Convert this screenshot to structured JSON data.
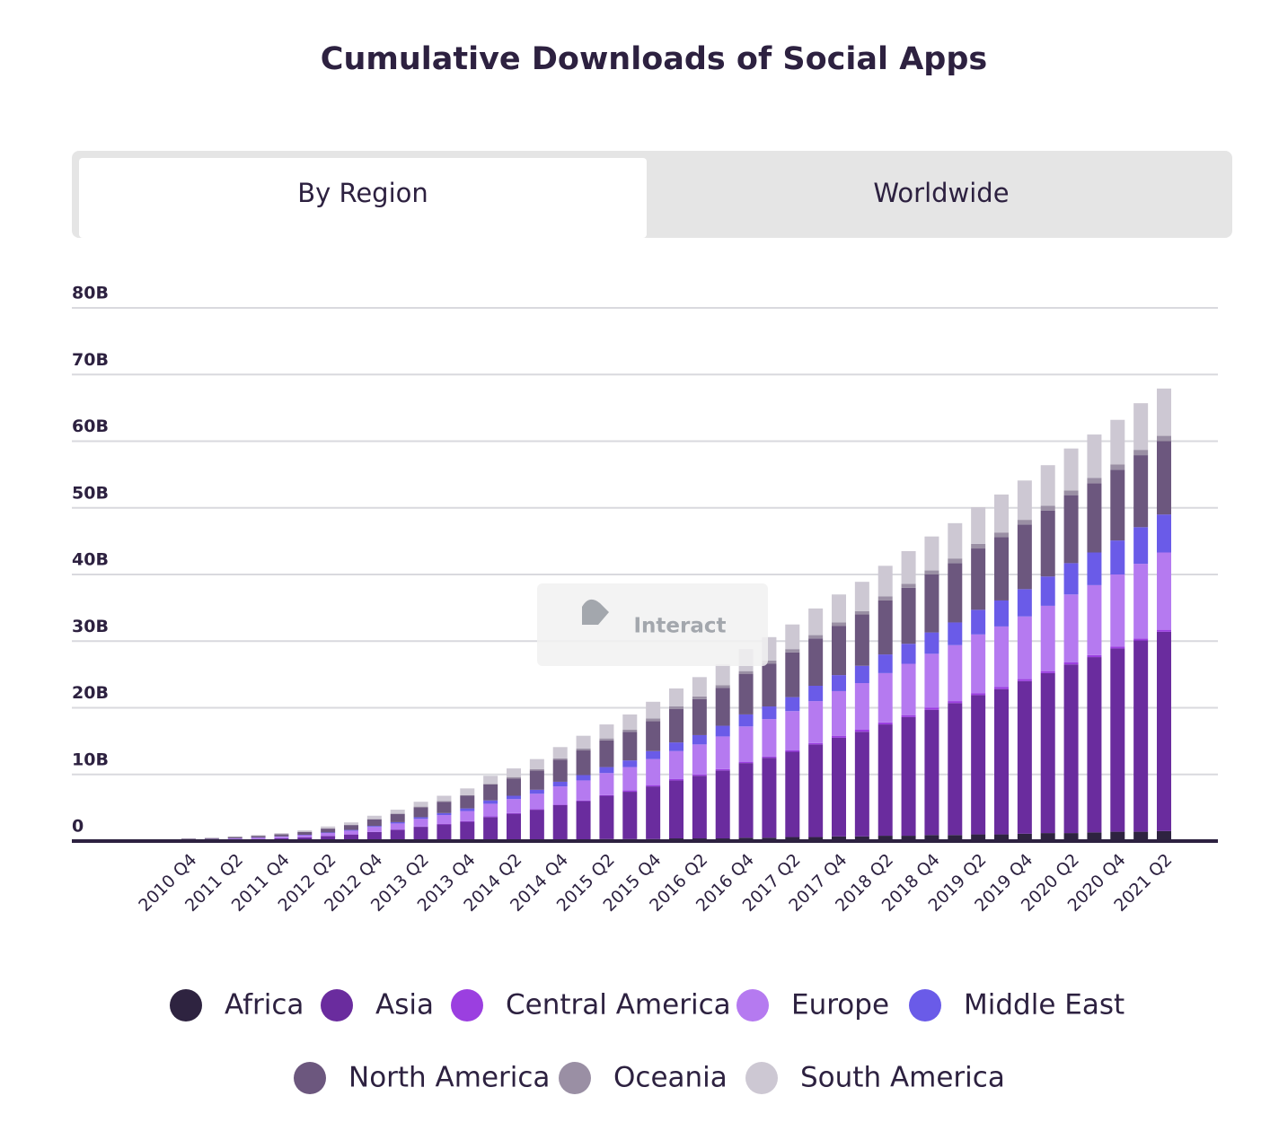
{
  "tabs": [
    "By Region",
    "Worldwide"
  ],
  "interact_label": "Interact",
  "chart_data": {
    "type": "stacked-bar",
    "title": "Cumulative Downloads of Social Apps",
    "categories": [
      "2010 Q4",
      null,
      "2011 Q2",
      null,
      "2011 Q4",
      null,
      "2012 Q2",
      null,
      "2012 Q4",
      null,
      "2013 Q2",
      null,
      "2013 Q4",
      null,
      "2014 Q2",
      null,
      "2014 Q4",
      null,
      "2015 Q2",
      null,
      "2015 Q4",
      null,
      "2016 Q2",
      null,
      "2016 Q4",
      null,
      "2017 Q2",
      null,
      "2017 Q4",
      null,
      "2018 Q2",
      null,
      "2018 Q4",
      null,
      "2019 Q2",
      null,
      "2019 Q4",
      null,
      "2020 Q2",
      null,
      "2020 Q4",
      null,
      "2021 Q2"
    ],
    "series": [
      {
        "name": "Africa",
        "color": "#2e2340",
        "values": [
          0.01,
          0.01,
          0.01,
          0.01,
          0.01,
          0.02,
          0.02,
          0.03,
          0.05,
          0.06,
          0.08,
          0.1,
          0.1,
          0.1,
          0.2,
          0.2,
          0.2,
          0.2,
          0.3,
          0.3,
          0.3,
          0.4,
          0.4,
          0.4,
          0.5,
          0.5,
          0.6,
          0.6,
          0.7,
          0.7,
          0.8,
          0.8,
          0.9,
          0.9,
          1.0,
          1.0,
          1.1,
          1.2,
          1.2,
          1.3,
          1.4,
          1.4,
          1.5
        ]
      },
      {
        "name": "Asia",
        "color": "#6a2c9e",
        "values": [
          0.13,
          0.16,
          0.23,
          0.3,
          0.4,
          0.53,
          0.74,
          0.95,
          1.3,
          1.63,
          2.06,
          2.4,
          2.8,
          3.5,
          3.9,
          4.5,
          5.2,
          5.8,
          6.5,
          7.1,
          7.9,
          8.7,
          9.4,
          10.2,
          11.2,
          12.0,
          12.8,
          13.9,
          14.8,
          15.7,
          16.7,
          17.8,
          18.8,
          19.8,
          20.9,
          21.8,
          22.9,
          24.0,
          25.3,
          26.3,
          27.5,
          28.7,
          29.9
        ]
      },
      {
        "name": "Central America",
        "color": "#9b3fe0",
        "values": [
          0.01,
          0.01,
          0.01,
          0.01,
          0.01,
          0.02,
          0.02,
          0.03,
          0.03,
          0.04,
          0.05,
          0.1,
          0.1,
          0.1,
          0.1,
          0.1,
          0.1,
          0.1,
          0.1,
          0.2,
          0.2,
          0.2,
          0.2,
          0.2,
          0.2,
          0.2,
          0.2,
          0.2,
          0.3,
          0.3,
          0.3,
          0.3,
          0.3,
          0.3,
          0.3,
          0.3,
          0.3,
          0.3,
          0.3,
          0.3,
          0.3,
          0.3,
          0.3
        ]
      },
      {
        "name": "Europe",
        "color": "#b57af0",
        "values": [
          0.08,
          0.1,
          0.14,
          0.18,
          0.24,
          0.31,
          0.43,
          0.55,
          0.74,
          0.91,
          1.14,
          1.3,
          1.5,
          1.9,
          2.1,
          2.3,
          2.7,
          3.0,
          3.3,
          3.5,
          3.9,
          4.2,
          4.5,
          4.9,
          5.3,
          5.6,
          5.9,
          6.3,
          6.7,
          7.0,
          7.4,
          7.7,
          8.1,
          8.4,
          8.8,
          9.1,
          9.4,
          9.8,
          10.2,
          10.5,
          10.8,
          11.2,
          11.6
        ]
      },
      {
        "name": "Middle East",
        "color": "#6a5be8",
        "values": [
          0.01,
          0.02,
          0.02,
          0.03,
          0.04,
          0.06,
          0.08,
          0.11,
          0.15,
          0.2,
          0.25,
          0.3,
          0.4,
          0.5,
          0.5,
          0.6,
          0.7,
          0.8,
          0.9,
          1.0,
          1.2,
          1.3,
          1.4,
          1.6,
          1.8,
          1.9,
          2.1,
          2.3,
          2.4,
          2.6,
          2.8,
          3.0,
          3.2,
          3.4,
          3.7,
          3.9,
          4.1,
          4.4,
          4.7,
          4.9,
          5.1,
          5.5,
          5.7
        ]
      },
      {
        "name": "North America",
        "color": "#6c577e",
        "values": [
          0.11,
          0.14,
          0.19,
          0.24,
          0.32,
          0.43,
          0.58,
          0.73,
          0.98,
          1.2,
          1.49,
          1.7,
          1.9,
          2.4,
          2.6,
          2.9,
          3.3,
          3.7,
          4.0,
          4.3,
          4.5,
          5.0,
          5.4,
          5.7,
          6.1,
          6.4,
          6.7,
          7.1,
          7.4,
          7.7,
          8.1,
          8.4,
          8.7,
          8.9,
          9.2,
          9.5,
          9.7,
          9.9,
          10.2,
          10.4,
          10.6,
          10.8,
          11.0
        ]
      },
      {
        "name": "Oceania",
        "color": "#9a8fa4",
        "values": [
          0.01,
          0.01,
          0.01,
          0.02,
          0.02,
          0.03,
          0.04,
          0.05,
          0.07,
          0.08,
          0.1,
          0.1,
          0.1,
          0.1,
          0.2,
          0.2,
          0.2,
          0.3,
          0.3,
          0.3,
          0.4,
          0.4,
          0.4,
          0.4,
          0.4,
          0.5,
          0.5,
          0.5,
          0.5,
          0.5,
          0.6,
          0.6,
          0.6,
          0.7,
          0.7,
          0.7,
          0.7,
          0.7,
          0.7,
          0.8,
          0.8,
          0.8,
          0.8
        ]
      },
      {
        "name": "South America",
        "color": "#cdc8d3",
        "values": [
          0.05,
          0.06,
          0.09,
          0.12,
          0.15,
          0.2,
          0.28,
          0.35,
          0.48,
          0.59,
          0.73,
          0.8,
          1.0,
          1.2,
          1.3,
          1.5,
          1.7,
          1.9,
          2.1,
          2.3,
          2.5,
          2.7,
          2.9,
          3.1,
          3.3,
          3.5,
          3.7,
          4.0,
          4.2,
          4.4,
          4.6,
          4.9,
          5.1,
          5.3,
          5.5,
          5.7,
          5.9,
          6.1,
          6.3,
          6.5,
          6.7,
          7.0,
          7.1
        ]
      }
    ],
    "ylim": [
      0,
      80
    ],
    "yticks": [
      0,
      {
        "value": 10,
        "label": "10B"
      },
      {
        "value": 20,
        "label": "20B"
      },
      {
        "value": 30,
        "label": "30B"
      },
      {
        "value": 40,
        "label": "40B"
      },
      {
        "value": 50,
        "label": "50B"
      },
      {
        "value": 60,
        "label": "60B"
      },
      {
        "value": 70,
        "label": "70B"
      },
      {
        "value": 80,
        "label": "80B"
      }
    ],
    "grid": true
  }
}
